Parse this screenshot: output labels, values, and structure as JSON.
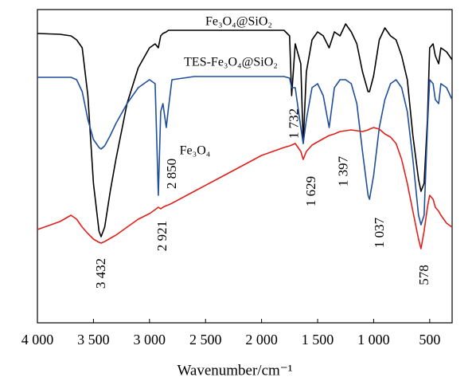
{
  "chart_data": {
    "type": "line",
    "x_label": "Wavenumber/cm⁻¹",
    "x": [
      4000,
      3800,
      3700,
      3650,
      3600,
      3550,
      3500,
      3450,
      3432,
      3400,
      3350,
      3300,
      3200,
      3100,
      3000,
      2950,
      2921,
      2900,
      2880,
      2850,
      2830,
      2800,
      2600,
      2400,
      2200,
      2000,
      1800,
      1750,
      1732,
      1700,
      1650,
      1629,
      1600,
      1550,
      1500,
      1450,
      1397,
      1350,
      1300,
      1250,
      1200,
      1150,
      1100,
      1050,
      1037,
      1000,
      950,
      900,
      850,
      800,
      750,
      700,
      650,
      600,
      578,
      550,
      520,
      500,
      470,
      450,
      420,
      400,
      350,
      300
    ],
    "series": [
      {
        "name": "Fe₃O₄@SiO₂",
        "color": "#000000",
        "values": [
          363,
          362,
          360,
          355,
          345,
          285,
          175,
          115,
          108,
          120,
          165,
          205,
          275,
          320,
          345,
          350,
          345,
          360,
          363,
          365,
          367,
          367,
          367,
          367,
          367,
          367,
          367,
          360,
          285,
          350,
          325,
          225,
          315,
          355,
          365,
          360,
          345,
          365,
          360,
          375,
          365,
          350,
          315,
          290,
          290,
          310,
          355,
          370,
          360,
          355,
          335,
          305,
          235,
          180,
          165,
          175,
          255,
          345,
          350,
          335,
          325,
          345,
          340,
          330
        ]
      },
      {
        "name": "TES-Fe₃O₄@SiO₂",
        "color": "#1f4e9c",
        "values": [
          308,
          308,
          308,
          305,
          290,
          255,
          230,
          220,
          218,
          222,
          235,
          250,
          275,
          295,
          305,
          300,
          160,
          265,
          275,
          245,
          270,
          305,
          309,
          309,
          309,
          309,
          309,
          307,
          295,
          295,
          245,
          225,
          255,
          295,
          300,
          285,
          245,
          295,
          305,
          305,
          300,
          275,
          215,
          160,
          155,
          185,
          245,
          280,
          300,
          305,
          295,
          265,
          205,
          135,
          123,
          135,
          245,
          305,
          300,
          280,
          275,
          300,
          295,
          280
        ]
      },
      {
        "name": "Fe₃O₄",
        "color": "#e0201b",
        "values": [
          117,
          127,
          135,
          130,
          120,
          112,
          105,
          101,
          100,
          102,
          106,
          110,
          120,
          130,
          137,
          142,
          145,
          143,
          145,
          147,
          148,
          150,
          165,
          180,
          195,
          210,
          220,
          222,
          223,
          225,
          215,
          205,
          215,
          223,
          227,
          231,
          235,
          237,
          240,
          241,
          242,
          241,
          240,
          242,
          243,
          245,
          243,
          237,
          233,
          225,
          205,
          175,
          140,
          105,
          93,
          115,
          145,
          160,
          155,
          145,
          140,
          135,
          125,
          120
        ]
      }
    ],
    "xlim": [
      4000,
      300
    ],
    "ylim": [
      0,
      393
    ],
    "xticks": [
      {
        "value": 4000,
        "label": "4 000"
      },
      {
        "value": 3500,
        "label": "3 500"
      },
      {
        "value": 3000,
        "label": "3 000"
      },
      {
        "value": 2500,
        "label": "2 500"
      },
      {
        "value": 2000,
        "label": "2 000"
      },
      {
        "value": 1500,
        "label": "1 500"
      },
      {
        "value": 1000,
        "label": "1 000"
      },
      500
    ],
    "annotations": [
      {
        "text": "3 432",
        "x": 3432
      },
      {
        "text": "2 921",
        "x": 2921
      },
      {
        "text": "2 850",
        "x": 2850
      },
      {
        "text": "1 732",
        "x": 1732
      },
      {
        "text": "1 629",
        "x": 1629
      },
      {
        "text": "1 397",
        "x": 1397
      },
      {
        "text": "1 037",
        "x": 1037
      },
      {
        "text": "578",
        "x": 578
      }
    ]
  }
}
